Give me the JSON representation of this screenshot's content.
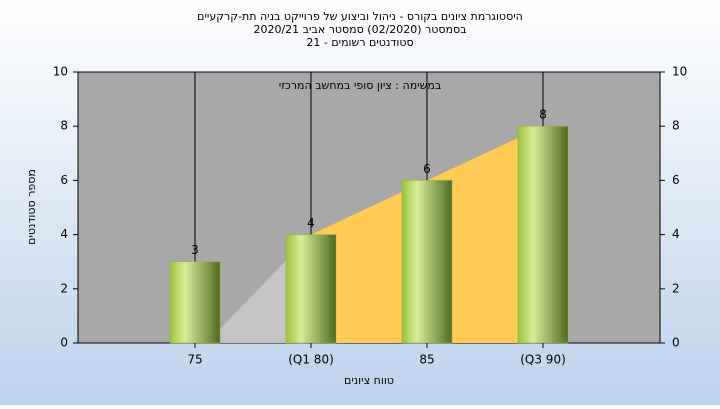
{
  "chart_data": {
    "type": "bar",
    "title": [
      "היסטוגרמת ציונים בקורס - ניהול וביצוע של פרוייקט בניה תת-קרקעיים",
      "בסמסטר (02/2020) סמסטר אביב 2020/21",
      "סטודנטים רשומים - 21"
    ],
    "annotation": "במשימה : ציון סופי במחשב המרכזי",
    "xlabel": "טווח ציונים",
    "ylabel": "מספר סטודנטים",
    "categories": [
      "75",
      "(Q1 80)",
      "85",
      "(Q3 90)"
    ],
    "values": [
      3,
      4,
      6,
      8
    ],
    "color": "#8fb13c",
    "ylim": [
      0,
      10
    ],
    "yticks": [
      0,
      2,
      4,
      6,
      8,
      10
    ],
    "y2lim": [
      0,
      10
    ],
    "y2ticks": [
      0,
      2,
      4,
      6,
      8,
      10
    ]
  }
}
